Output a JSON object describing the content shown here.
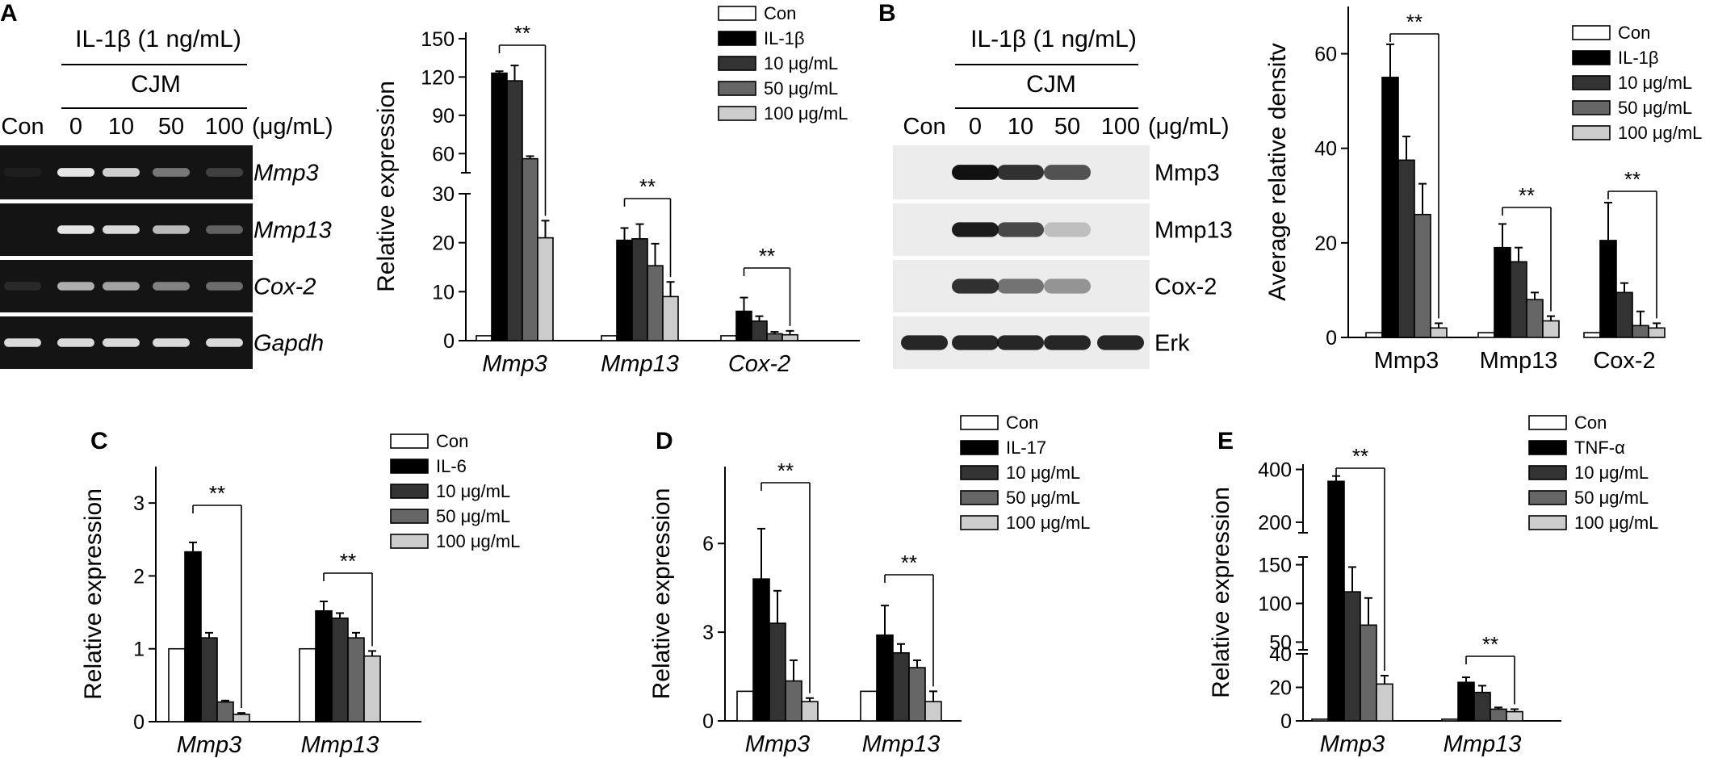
{
  "colors": {
    "Con": "#ffffff",
    "stim": "#000000",
    "d10": "#333333",
    "d50": "#666666",
    "d100": "#cccccc",
    "gel_bg": "#141414",
    "band": "#f0f0f0",
    "blot_bg": "#ececec",
    "blot_band": "#111111"
  },
  "panel_A": {
    "letter": "A",
    "gel": {
      "treatment": "IL-1β (1 ng/mL)",
      "drug": "CJM",
      "lane_labels": [
        "Con",
        "0",
        "10",
        "50",
        "100"
      ],
      "unit": "(μg/mL)",
      "row_labels": [
        "Mmp3",
        "Mmp13",
        "Cox-2",
        "Gapdh"
      ],
      "band_intensity": [
        [
          0.05,
          0.95,
          0.85,
          0.45,
          0.2
        ],
        [
          0.0,
          0.95,
          0.9,
          0.75,
          0.35
        ],
        [
          0.1,
          0.7,
          0.65,
          0.5,
          0.4
        ],
        [
          0.9,
          0.9,
          0.9,
          0.9,
          0.9
        ]
      ]
    }
  },
  "panel_B": {
    "letter": "B",
    "blot": {
      "treatment": "IL-1β (1 ng/mL)",
      "drug": "CJM",
      "lane_labels": [
        "Con",
        "0",
        "10",
        "50",
        "100"
      ],
      "unit": "(μg/mL)",
      "row_labels": [
        "Mmp3",
        "Mmp13",
        "Cox-2",
        "Erk"
      ],
      "band_intensity": [
        [
          0.0,
          1.0,
          0.85,
          0.7,
          0.0
        ],
        [
          0.0,
          0.95,
          0.75,
          0.2,
          0.0
        ],
        [
          0.0,
          0.85,
          0.55,
          0.4,
          0.0
        ],
        [
          0.9,
          0.9,
          0.9,
          0.9,
          0.9
        ]
      ]
    }
  },
  "chart_data": [
    {
      "id": "A",
      "type": "bar",
      "ylabel": "Relative expression",
      "italic_categories": true,
      "categories": [
        "Mmp3",
        "Mmp13",
        "Cox-2"
      ],
      "broken_axis": true,
      "lower": {
        "ylim": [
          0,
          30
        ],
        "ticks": [
          0,
          10,
          20,
          30
        ]
      },
      "upper": {
        "ylim": [
          45,
          155
        ],
        "ticks": [
          60,
          90,
          120,
          150
        ]
      },
      "series": [
        {
          "name": "Con",
          "values": [
            1,
            1,
            1
          ],
          "errors": [
            0,
            0,
            0
          ]
        },
        {
          "name": "IL-1β",
          "values": [
            123,
            20.5,
            6
          ],
          "errors": [
            1.5,
            2.5,
            2.8
          ]
        },
        {
          "name": "10 μg/mL",
          "values": [
            117,
            20.8,
            4
          ],
          "errors": [
            12,
            3,
            1
          ]
        },
        {
          "name": "50 μg/mL",
          "values": [
            56,
            15.3,
            1.4
          ],
          "errors": [
            2,
            4.5,
            0.4
          ]
        },
        {
          "name": "100 μg/mL",
          "values": [
            21,
            9,
            1.2
          ],
          "errors": [
            3.5,
            3,
            0.8
          ]
        }
      ],
      "significance": [
        {
          "category": "Mmp3",
          "label": "**"
        },
        {
          "category": "Mmp13",
          "label": "**"
        },
        {
          "category": "Cox-2",
          "label": "**"
        }
      ]
    },
    {
      "id": "B",
      "type": "bar",
      "ylabel": "Average relative densitv",
      "italic_categories": false,
      "categories": [
        "Mmp3",
        "Mmp13",
        "Cox-2"
      ],
      "ylim": [
        0,
        70
      ],
      "ticks": [
        0,
        20,
        40,
        60
      ],
      "series": [
        {
          "name": "Con",
          "values": [
            1,
            1,
            1
          ],
          "errors": [
            0,
            0,
            0
          ]
        },
        {
          "name": "IL-1β",
          "values": [
            55,
            19,
            20.5
          ],
          "errors": [
            7,
            5,
            8
          ]
        },
        {
          "name": "10 μg/mL",
          "values": [
            37.5,
            16,
            9.5
          ],
          "errors": [
            5,
            3,
            2
          ]
        },
        {
          "name": "50 μg/mL",
          "values": [
            26,
            8,
            2.5
          ],
          "errors": [
            6.5,
            1.5,
            3
          ]
        },
        {
          "name": "100 μg/mL",
          "values": [
            2,
            3.5,
            2
          ],
          "errors": [
            1,
            1,
            1
          ]
        }
      ],
      "significance": [
        {
          "category": "Mmp3",
          "label": "**"
        },
        {
          "category": "Mmp13",
          "label": "**"
        },
        {
          "category": "Cox-2",
          "label": "**"
        }
      ]
    },
    {
      "id": "C",
      "type": "bar",
      "ylabel": "Relative expression",
      "italic_categories": true,
      "categories": [
        "Mmp3",
        "Mmp13"
      ],
      "ylim": [
        0,
        3.5
      ],
      "ticks": [
        0,
        1,
        2,
        3
      ],
      "series": [
        {
          "name": "Con",
          "values": [
            1,
            1
          ],
          "errors": [
            0,
            0
          ]
        },
        {
          "name": "IL-6",
          "values": [
            2.33,
            1.52
          ],
          "errors": [
            0.13,
            0.13
          ]
        },
        {
          "name": "10 μg/mL",
          "values": [
            1.15,
            1.42
          ],
          "errors": [
            0.07,
            0.07
          ]
        },
        {
          "name": "50 μg/mL",
          "values": [
            0.27,
            1.15
          ],
          "errors": [
            0.02,
            0.07
          ]
        },
        {
          "name": "100 μg/mL",
          "values": [
            0.1,
            0.9
          ],
          "errors": [
            0.02,
            0.07
          ]
        }
      ],
      "significance": [
        {
          "category": "Mmp3",
          "label": "**"
        },
        {
          "category": "Mmp13",
          "label": "**"
        }
      ]
    },
    {
      "id": "D",
      "type": "bar",
      "ylabel": "Relative expression",
      "italic_categories": true,
      "categories": [
        "Mmp3",
        "Mmp13"
      ],
      "ylim": [
        0,
        8.6
      ],
      "ticks": [
        0,
        3,
        6
      ],
      "series": [
        {
          "name": "Con",
          "values": [
            1,
            1
          ],
          "errors": [
            0,
            0
          ]
        },
        {
          "name": "IL-17",
          "values": [
            4.8,
            2.9
          ],
          "errors": [
            1.7,
            1
          ]
        },
        {
          "name": "10 μg/mL",
          "values": [
            3.3,
            2.3
          ],
          "errors": [
            1.1,
            0.3
          ]
        },
        {
          "name": "50 μg/mL",
          "values": [
            1.35,
            1.8
          ],
          "errors": [
            0.7,
            0.25
          ]
        },
        {
          "name": "100 μg/mL",
          "values": [
            0.65,
            0.65
          ],
          "errors": [
            0.12,
            0.35
          ]
        }
      ],
      "significance": [
        {
          "category": "Mmp3",
          "label": "**"
        },
        {
          "category": "Mmp13",
          "label": "**"
        }
      ]
    },
    {
      "id": "E",
      "type": "bar",
      "ylabel": "Relative expression",
      "italic_categories": true,
      "categories": [
        "Mmp3",
        "Mmp13"
      ],
      "broken_axis": true,
      "segments": [
        {
          "ylim": [
            0,
            40
          ],
          "ticks": [
            0,
            20,
            40
          ]
        },
        {
          "ylim": [
            40,
            160
          ],
          "ticks": [
            50,
            100,
            150
          ]
        },
        {
          "ylim": [
            160,
            420
          ],
          "ticks": [
            200,
            400
          ]
        }
      ],
      "series": [
        {
          "name": "Con",
          "values": [
            1,
            1
          ],
          "errors": [
            0,
            0
          ]
        },
        {
          "name": "TNF-α",
          "values": [
            355,
            23
          ],
          "errors": [
            20,
            3
          ]
        },
        {
          "name": "10 μg/mL",
          "values": [
            115,
            17
          ],
          "errors": [
            32,
            4
          ]
        },
        {
          "name": "50 μg/mL",
          "values": [
            72,
            7
          ],
          "errors": [
            35,
            1
          ]
        },
        {
          "name": "100 μg/mL",
          "values": [
            22,
            5.5
          ],
          "errors": [
            5,
            1.5
          ]
        }
      ],
      "significance": [
        {
          "category": "Mmp3",
          "label": "**"
        },
        {
          "category": "Mmp13",
          "label": "**"
        }
      ]
    }
  ]
}
